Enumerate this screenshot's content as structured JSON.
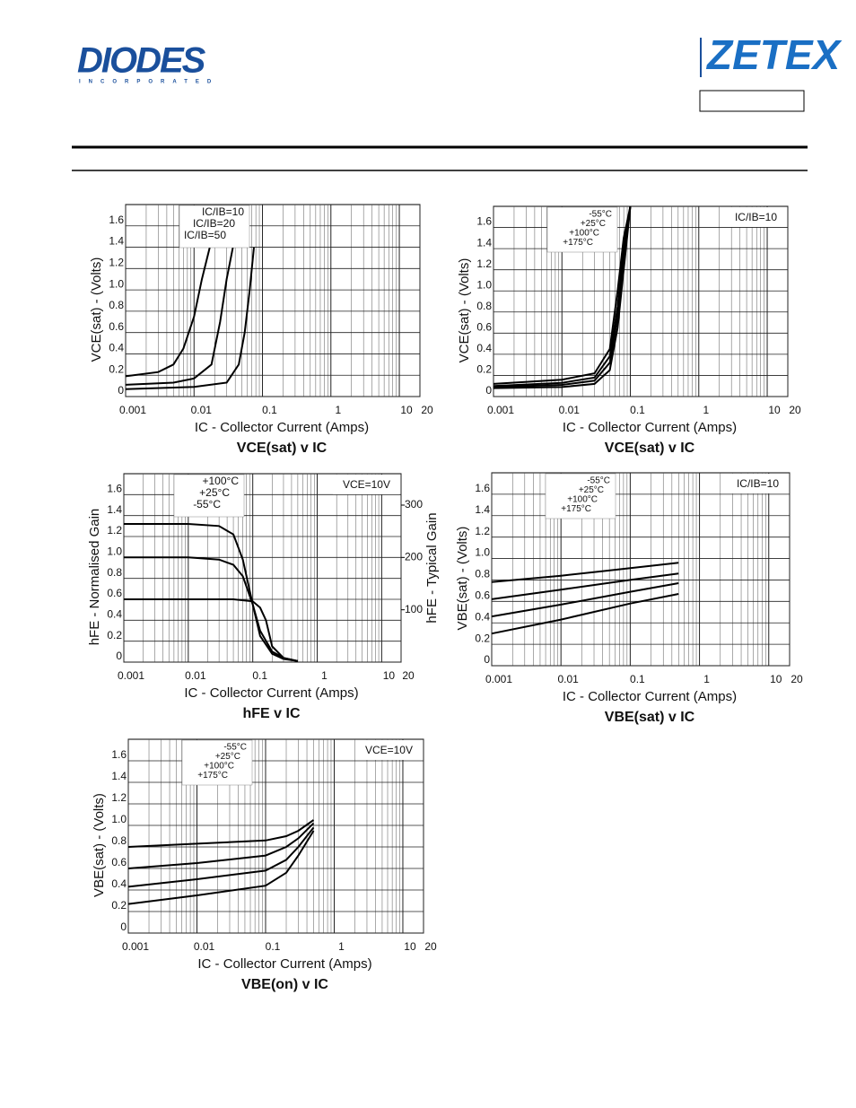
{
  "header": {
    "logo_left": "DIODES",
    "logo_left_sub": "INCORPORATED",
    "logo_right": "ZETEX"
  },
  "chart_data": [
    {
      "type": "line",
      "title": "VCE(sat) v IC",
      "xlabel": "IC - Collector Current (Amps)",
      "ylabel": "VCE(sat) - (Volts)",
      "xscale": "log",
      "xlim": [
        0.001,
        20
      ],
      "xticks": [
        0.001,
        0.01,
        0.1,
        1,
        10,
        20
      ],
      "ylim": [
        0,
        1.8
      ],
      "yticks": [
        0,
        0.2,
        0.4,
        0.6,
        0.8,
        {
          "value": 1,
          "label": "1.0"
        },
        1.2,
        1.4,
        1.6
      ],
      "grid": true,
      "legend": "top-left",
      "series": [
        {
          "name": "IC/IB=10",
          "color": "#000000",
          "x": [
            0.001,
            0.01,
            0.03,
            0.045,
            0.055,
            0.065,
            0.075
          ],
          "values": [
            0.07,
            0.09,
            0.13,
            0.3,
            0.6,
            1.0,
            1.4
          ]
        },
        {
          "name": "IC/IB=20",
          "color": "#000000",
          "x": [
            0.001,
            0.005,
            0.01,
            0.018,
            0.024,
            0.03,
            0.037
          ],
          "values": [
            0.11,
            0.13,
            0.17,
            0.3,
            0.7,
            1.1,
            1.4
          ]
        },
        {
          "name": "IC/IB=50",
          "color": "#000000",
          "x": [
            0.001,
            0.003,
            0.005,
            0.007,
            0.01,
            0.013,
            0.017
          ],
          "values": [
            0.19,
            0.23,
            0.3,
            0.45,
            0.75,
            1.1,
            1.4
          ]
        }
      ]
    },
    {
      "type": "line",
      "title": "VCE(sat) v IC",
      "xlabel": "IC - Collector Current (Amps)",
      "ylabel": "VCE(sat) - (Volts)",
      "xscale": "log",
      "xlim": [
        0.001,
        20
      ],
      "xticks": [
        0.001,
        0.01,
        0.1,
        1,
        10,
        20
      ],
      "ylim": [
        0,
        1.8
      ],
      "yticks": [
        0,
        0.2,
        0.4,
        0.6,
        0.8,
        {
          "value": 1,
          "label": "1.0"
        },
        1.2,
        1.4,
        1.6
      ],
      "grid": true,
      "legend": "top-left",
      "annotation": "IC/IB=10",
      "series": [
        {
          "name": "-55°C",
          "color": "#000000",
          "x": [
            0.001,
            0.01,
            0.03,
            0.05,
            0.065,
            0.08,
            0.1
          ],
          "values": [
            0.12,
            0.16,
            0.22,
            0.45,
            1.0,
            1.5,
            1.8
          ]
        },
        {
          "name": "+25°C",
          "color": "#000000",
          "x": [
            0.001,
            0.01,
            0.03,
            0.05,
            0.065,
            0.08,
            0.1
          ],
          "values": [
            0.1,
            0.13,
            0.18,
            0.38,
            0.85,
            1.4,
            1.8
          ]
        },
        {
          "name": "+100°C",
          "color": "#000000",
          "x": [
            0.001,
            0.01,
            0.03,
            0.05,
            0.065,
            0.08,
            0.1
          ],
          "values": [
            0.09,
            0.11,
            0.15,
            0.32,
            0.75,
            1.3,
            1.8
          ]
        },
        {
          "name": "+175°C",
          "color": "#000000",
          "x": [
            0.001,
            0.01,
            0.03,
            0.05,
            0.065,
            0.08,
            0.1
          ],
          "values": [
            0.08,
            0.09,
            0.12,
            0.25,
            0.65,
            1.2,
            1.8
          ]
        }
      ]
    },
    {
      "type": "line",
      "title": "hFE v IC",
      "xlabel": "IC - Collector Current (Amps)",
      "ylabel": "hFE - Normalised Gain",
      "y2label": "hFE - Typical Gain",
      "xscale": "log",
      "xlim": [
        0.001,
        20
      ],
      "xticks": [
        0.001,
        0.01,
        0.1,
        1,
        10,
        20
      ],
      "ylim": [
        0,
        1.8
      ],
      "yticks": [
        0,
        0.2,
        0.4,
        0.6,
        0.8,
        {
          "value": 1,
          "label": "1.0"
        },
        1.2,
        1.4,
        1.6
      ],
      "y2lim": [
        0,
        360
      ],
      "y2ticks": [
        100,
        200,
        300
      ],
      "grid": true,
      "legend": "top-left",
      "annotation": "VCE=10V",
      "series": [
        {
          "name": "+100°C",
          "color": "#000000",
          "x": [
            0.001,
            0.01,
            0.03,
            0.05,
            0.07,
            0.1,
            0.13,
            0.2,
            0.3,
            0.5
          ],
          "values": [
            1.32,
            1.32,
            1.3,
            1.22,
            0.98,
            0.55,
            0.25,
            0.08,
            0.03,
            0.01
          ]
        },
        {
          "name": "+25°C",
          "color": "#000000",
          "x": [
            0.001,
            0.01,
            0.03,
            0.05,
            0.07,
            0.1,
            0.13,
            0.2,
            0.3,
            0.5
          ],
          "values": [
            1.0,
            1.0,
            0.98,
            0.93,
            0.82,
            0.55,
            0.3,
            0.1,
            0.04,
            0.01
          ]
        },
        {
          "name": "-55°C",
          "color": "#000000",
          "x": [
            0.001,
            0.01,
            0.03,
            0.05,
            0.1,
            0.13,
            0.16,
            0.2,
            0.3,
            0.5
          ],
          "values": [
            0.6,
            0.6,
            0.6,
            0.6,
            0.58,
            0.52,
            0.4,
            0.15,
            0.04,
            0.01
          ]
        }
      ]
    },
    {
      "type": "line",
      "title": "VBE(sat) v IC",
      "xlabel": "IC - Collector Current (Amps)",
      "ylabel": "VBE(sat) - (Volts)",
      "xscale": "log",
      "xlim": [
        0.001,
        20
      ],
      "xticks": [
        0.001,
        0.01,
        0.1,
        1,
        10,
        20
      ],
      "ylim": [
        0,
        1.8
      ],
      "yticks": [
        0,
        0.2,
        0.4,
        0.6,
        0.8,
        {
          "value": 1,
          "label": "1.0"
        },
        1.2,
        1.4,
        1.6
      ],
      "grid": true,
      "legend": "top-left",
      "annotation": "IC/IB=10",
      "series": [
        {
          "name": "-55°C",
          "color": "#000000",
          "x": [
            0.001,
            0.01,
            0.1,
            0.5
          ],
          "values": [
            0.78,
            0.84,
            0.91,
            0.96
          ]
        },
        {
          "name": "+25°C",
          "color": "#000000",
          "x": [
            0.001,
            0.01,
            0.1,
            0.5
          ],
          "values": [
            0.62,
            0.71,
            0.8,
            0.86
          ]
        },
        {
          "name": "+100°C",
          "color": "#000000",
          "x": [
            0.001,
            0.01,
            0.1,
            0.5
          ],
          "values": [
            0.46,
            0.57,
            0.69,
            0.77
          ]
        },
        {
          "name": "+175°C",
          "color": "#000000",
          "x": [
            0.001,
            0.01,
            0.1,
            0.5
          ],
          "values": [
            0.3,
            0.43,
            0.58,
            0.67
          ]
        }
      ]
    },
    {
      "type": "line",
      "title": "VBE(on) v IC",
      "xlabel": "IC - Collector Current (Amps)",
      "ylabel": "VBE(sat) - (Volts)",
      "xscale": "log",
      "xlim": [
        0.001,
        20
      ],
      "xticks": [
        0.001,
        0.01,
        0.1,
        1,
        10,
        20
      ],
      "ylim": [
        0,
        1.8
      ],
      "yticks": [
        0,
        0.2,
        0.4,
        0.6,
        0.8,
        {
          "value": 1,
          "label": "1.0"
        },
        1.2,
        1.4,
        1.6
      ],
      "grid": true,
      "legend": "top-left",
      "annotation": "VCE=10V",
      "series": [
        {
          "name": "-55°C",
          "color": "#000000",
          "x": [
            0.001,
            0.01,
            0.1,
            0.2,
            0.3,
            0.5
          ],
          "values": [
            0.8,
            0.83,
            0.86,
            0.9,
            0.95,
            1.05
          ]
        },
        {
          "name": "+25°C",
          "color": "#000000",
          "x": [
            0.001,
            0.01,
            0.1,
            0.2,
            0.3,
            0.5
          ],
          "values": [
            0.6,
            0.65,
            0.72,
            0.8,
            0.88,
            1.02
          ]
        },
        {
          "name": "+100°C",
          "color": "#000000",
          "x": [
            0.001,
            0.01,
            0.1,
            0.2,
            0.3,
            0.5
          ],
          "values": [
            0.43,
            0.5,
            0.58,
            0.68,
            0.8,
            0.98
          ]
        },
        {
          "name": "+175°C",
          "color": "#000000",
          "x": [
            0.001,
            0.01,
            0.1,
            0.2,
            0.3,
            0.5
          ],
          "values": [
            0.27,
            0.35,
            0.44,
            0.56,
            0.72,
            0.95
          ]
        }
      ]
    }
  ]
}
